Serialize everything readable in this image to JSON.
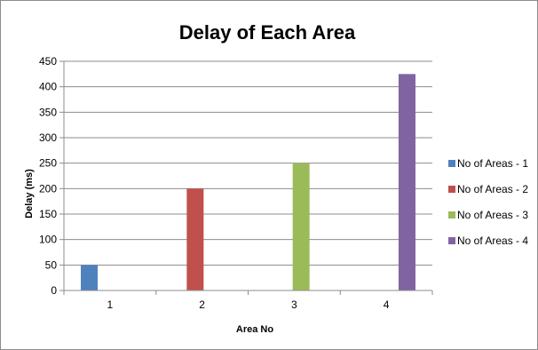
{
  "chart_data": {
    "type": "bar",
    "title": "Delay of Each Area",
    "xlabel": "Area No",
    "ylabel": "Delay (ms)",
    "categories": [
      "1",
      "2",
      "3",
      "4"
    ],
    "series": [
      {
        "name": "No of Areas - 1",
        "values": [
          50,
          null,
          null,
          null
        ],
        "color": "#4f81bd"
      },
      {
        "name": "No of Areas - 2",
        "values": [
          null,
          200,
          null,
          null
        ],
        "color": "#c0504d"
      },
      {
        "name": "No of Areas - 3",
        "values": [
          null,
          null,
          250,
          null
        ],
        "color": "#9bbb59"
      },
      {
        "name": "No of Areas - 4",
        "values": [
          null,
          null,
          null,
          425
        ],
        "color": "#8064a2"
      }
    ],
    "ylim": [
      0,
      450
    ],
    "yticks": [
      0,
      50,
      100,
      150,
      200,
      250,
      300,
      350,
      400,
      450
    ],
    "grid": true,
    "legend_position": "right"
  }
}
